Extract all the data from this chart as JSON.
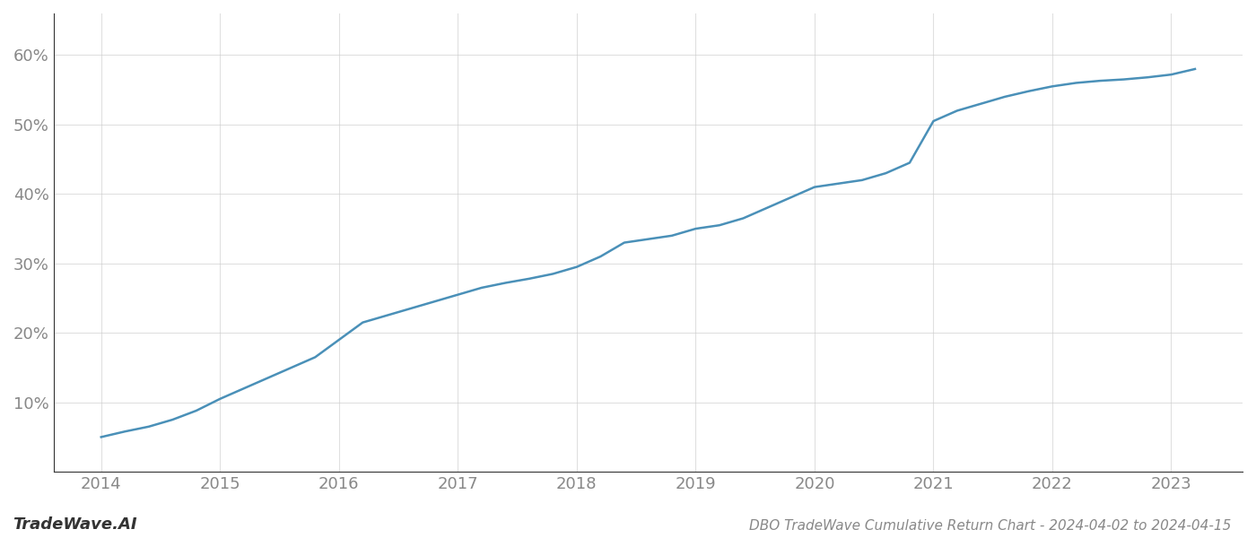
{
  "title": "DBO TradeWave Cumulative Return Chart - 2024-04-02 to 2024-04-15",
  "watermark": "TradeWave.AI",
  "line_color": "#4a90b8",
  "line_width": 1.8,
  "background_color": "#ffffff",
  "grid_color": "#cccccc",
  "x_years": [
    2014.0,
    2014.2,
    2014.4,
    2014.6,
    2014.8,
    2015.0,
    2015.2,
    2015.4,
    2015.6,
    2015.8,
    2016.0,
    2016.2,
    2016.4,
    2016.6,
    2016.8,
    2017.0,
    2017.2,
    2017.4,
    2017.6,
    2017.8,
    2018.0,
    2018.2,
    2018.4,
    2018.6,
    2018.8,
    2019.0,
    2019.2,
    2019.4,
    2019.6,
    2019.8,
    2020.0,
    2020.2,
    2020.4,
    2020.6,
    2020.8,
    2021.0,
    2021.2,
    2021.4,
    2021.6,
    2021.8,
    2022.0,
    2022.2,
    2022.4,
    2022.6,
    2022.8,
    2023.0,
    2023.2
  ],
  "y_values": [
    5.0,
    5.8,
    6.5,
    7.5,
    8.8,
    10.5,
    12.0,
    13.5,
    15.0,
    16.5,
    19.0,
    21.5,
    22.5,
    23.5,
    24.5,
    25.5,
    26.5,
    27.2,
    27.8,
    28.5,
    29.5,
    31.0,
    33.0,
    33.5,
    34.0,
    35.0,
    35.5,
    36.5,
    38.0,
    39.5,
    41.0,
    41.5,
    42.0,
    43.0,
    44.5,
    50.5,
    52.0,
    53.0,
    54.0,
    54.8,
    55.5,
    56.0,
    56.3,
    56.5,
    56.8,
    57.2,
    58.0
  ],
  "yticks": [
    10,
    20,
    30,
    40,
    50,
    60
  ],
  "xticks": [
    2014,
    2015,
    2016,
    2017,
    2018,
    2019,
    2020,
    2021,
    2022,
    2023
  ],
  "xlim": [
    2013.6,
    2023.6
  ],
  "ylim": [
    0,
    66
  ],
  "tick_fontsize": 13,
  "title_fontsize": 11,
  "watermark_fontsize": 13,
  "tick_color": "#888888",
  "spine_color": "#333333",
  "grid_alpha": 0.6
}
